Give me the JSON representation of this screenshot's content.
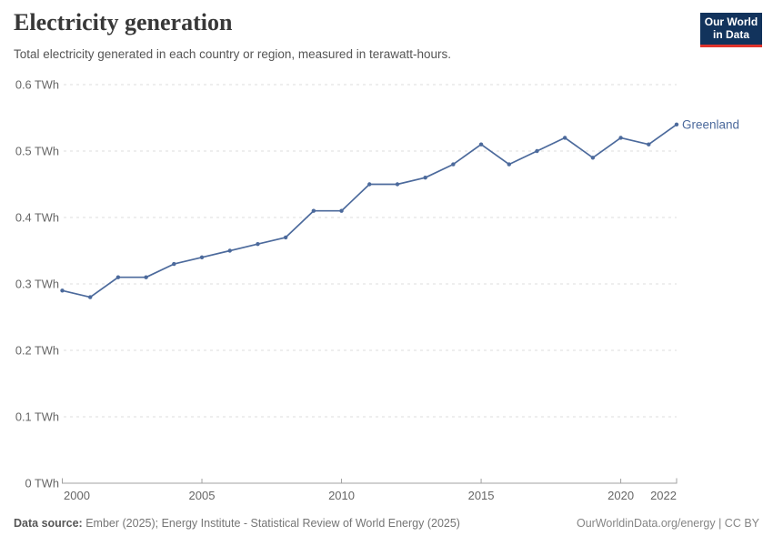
{
  "header": {
    "title": "Electricity generation",
    "subtitle": "Total electricity generated in each country or region, measured in terawatt-hours."
  },
  "logo": {
    "line1": "Our World",
    "line2": "in Data"
  },
  "chart_data": {
    "type": "line",
    "title": "Electricity generation",
    "xlabel": "",
    "ylabel": "TWh",
    "x": [
      2000,
      2001,
      2002,
      2003,
      2004,
      2005,
      2006,
      2007,
      2008,
      2009,
      2010,
      2011,
      2012,
      2013,
      2014,
      2015,
      2016,
      2017,
      2018,
      2019,
      2020,
      2021,
      2022
    ],
    "series": [
      {
        "name": "Greenland",
        "values": [
          0.29,
          0.28,
          0.31,
          0.31,
          0.33,
          0.34,
          0.35,
          0.36,
          0.37,
          0.41,
          0.41,
          0.45,
          0.45,
          0.46,
          0.48,
          0.51,
          0.48,
          0.5,
          0.52,
          0.49,
          0.52,
          0.51,
          0.54
        ]
      }
    ],
    "ylim": [
      0,
      0.6
    ],
    "yticks": [
      {
        "value": 0.0,
        "label": "0 TWh"
      },
      {
        "value": 0.1,
        "label": "0.1 TWh"
      },
      {
        "value": 0.2,
        "label": "0.2 TWh"
      },
      {
        "value": 0.3,
        "label": "0.3 TWh"
      },
      {
        "value": 0.4,
        "label": "0.4 TWh"
      },
      {
        "value": 0.5,
        "label": "0.5 TWh"
      },
      {
        "value": 0.6,
        "label": "0.6 TWh"
      }
    ],
    "xticks": [
      2000,
      2005,
      2010,
      2015,
      2020,
      2022
    ],
    "grid": "horizontal-dashed",
    "legend": "end-of-line-label"
  },
  "footer": {
    "source_label": "Data source:",
    "source_text": " Ember (2025); Energy Institute - Statistical Review of World Energy (2025)",
    "right_text": "OurWorldinData.org/energy | CC BY"
  },
  "colors": {
    "line": "#4C6A9C",
    "grid": "#dcdcdc",
    "axis": "#a1a1a1",
    "tick_text": "#666666",
    "logo_bg": "#12335c",
    "logo_accent": "#e0342c"
  }
}
